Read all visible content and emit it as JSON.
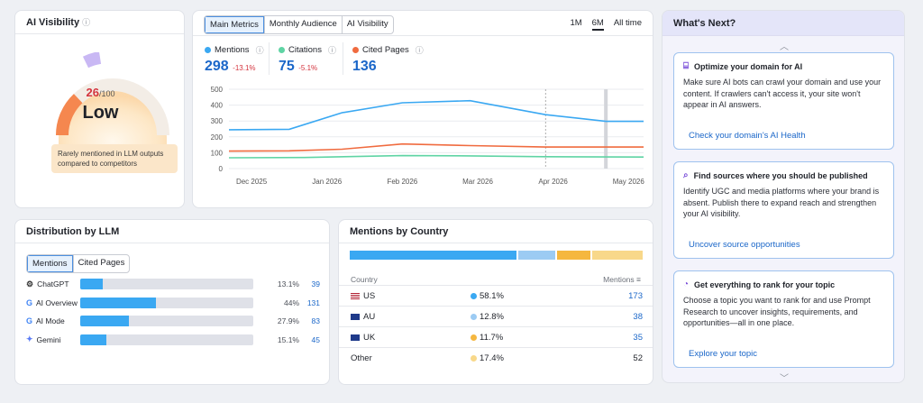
{
  "ai_visibility": {
    "title": "AI Visibility",
    "score": "26",
    "score_max": "/100",
    "level": "Low",
    "note": "Rarely mentioned in LLM outputs compared to competitors",
    "gauge_fraction": 0.26
  },
  "metrics": {
    "tabs": [
      "Main Metrics",
      "Monthly Audience",
      "AI Visibility"
    ],
    "active_tab": 0,
    "ranges": [
      "1M",
      "6M",
      "All time"
    ],
    "active_range": 1,
    "summary": [
      {
        "label": "Mentions",
        "value": "298",
        "delta": "-13.1%",
        "color": "#3aa8f2"
      },
      {
        "label": "Citations",
        "value": "75",
        "delta": "-5.1%",
        "color": "#5fd4a4"
      },
      {
        "label": "Cited Pages",
        "value": "136",
        "delta": "",
        "color": "#f06b3f"
      }
    ]
  },
  "chart_data": {
    "type": "line",
    "x": [
      "Dec 2025",
      "Jan 2026",
      "Feb 2026",
      "Mar 2026",
      "Apr 2026",
      "May 2026"
    ],
    "x_positions": [
      0.3,
      1.3,
      2.3,
      3.3,
      4.3,
      5.3
    ],
    "series": [
      {
        "name": "Mentions",
        "color": "#3aa8f2",
        "points": [
          [
            0,
            245
          ],
          [
            0.8,
            248
          ],
          [
            1.5,
            352
          ],
          [
            2.3,
            415
          ],
          [
            3.2,
            428
          ],
          [
            4.2,
            340
          ],
          [
            5.0,
            298
          ],
          [
            5.5,
            298
          ]
        ]
      },
      {
        "name": "Citations",
        "color": "#5fd4a4",
        "points": [
          [
            0,
            68
          ],
          [
            1.0,
            70
          ],
          [
            2.3,
            82
          ],
          [
            3.2,
            80
          ],
          [
            4.2,
            75
          ],
          [
            5.5,
            73
          ]
        ]
      },
      {
        "name": "Cited Pages",
        "color": "#f06b3f",
        "points": [
          [
            0,
            110
          ],
          [
            0.8,
            112
          ],
          [
            1.5,
            122
          ],
          [
            2.3,
            155
          ],
          [
            3.2,
            145
          ],
          [
            4.2,
            136
          ],
          [
            5.5,
            136
          ]
        ]
      }
    ],
    "yticks": [
      0,
      100,
      200,
      300,
      400,
      500
    ],
    "ylim": [
      0,
      500
    ],
    "xlim": [
      0,
      5.5
    ],
    "grid": true,
    "markers_x": [
      4.2,
      5.0
    ]
  },
  "whats_next": {
    "title": "What's Next?",
    "tips": [
      {
        "title": "Optimize your domain for AI",
        "body": "Make sure AI bots can crawl your domain and use your content. If crawlers can't access it, your site won't appear in AI answers.",
        "link": "Check your domain's AI Health",
        "icon": "domain-icon"
      },
      {
        "title": "Find sources where you should be published",
        "body": "Identify UGC and media platforms where your brand is absent. Publish there to expand reach and strengthen your AI visibility.",
        "link": "Uncover source opportunities",
        "icon": "search-icon"
      },
      {
        "title": "Get everything to rank for your topic",
        "body": "Choose a topic you want to rank for and use Prompt Research to uncover insights, requirements, and opportunities—all in one place.",
        "link": "Explore your topic",
        "icon": "pie-icon"
      }
    ]
  },
  "distribution": {
    "title": "Distribution by LLM",
    "tabs": [
      "Mentions",
      "Cited Pages"
    ],
    "rows": [
      {
        "name": "ChatGPT",
        "pct": "13.1%",
        "fraction": 0.131,
        "value": "39",
        "icon": "chatgpt-icon"
      },
      {
        "name": "AI Overview",
        "pct": "44%",
        "fraction": 0.44,
        "value": "131",
        "icon": "google-icon"
      },
      {
        "name": "AI Mode",
        "pct": "27.9%",
        "fraction": 0.279,
        "value": "83",
        "icon": "google-icon"
      },
      {
        "name": "Gemini",
        "pct": "15.1%",
        "fraction": 0.151,
        "value": "45",
        "icon": "gemini-icon"
      }
    ]
  },
  "country": {
    "title": "Mentions by Country",
    "col_country": "Country",
    "col_mentions": "Mentions",
    "bar": [
      {
        "fraction": 0.581,
        "color": "#3aa8f2"
      },
      {
        "fraction": 0.128,
        "color": "#9ccbf3"
      },
      {
        "fraction": 0.117,
        "color": "#f5b73f"
      },
      {
        "fraction": 0.174,
        "color": "#f8d88a"
      }
    ],
    "rows": [
      {
        "code": "US",
        "pct": "58.1%",
        "value": "173",
        "color": "#3aa8f2",
        "link": true
      },
      {
        "code": "AU",
        "pct": "12.8%",
        "value": "38",
        "color": "#9ccbf3",
        "link": true
      },
      {
        "code": "UK",
        "pct": "11.7%",
        "value": "35",
        "color": "#f5b73f",
        "link": true
      },
      {
        "code": "Other",
        "pct": "17.4%",
        "value": "52",
        "color": "#f8d88a",
        "link": false
      }
    ]
  }
}
